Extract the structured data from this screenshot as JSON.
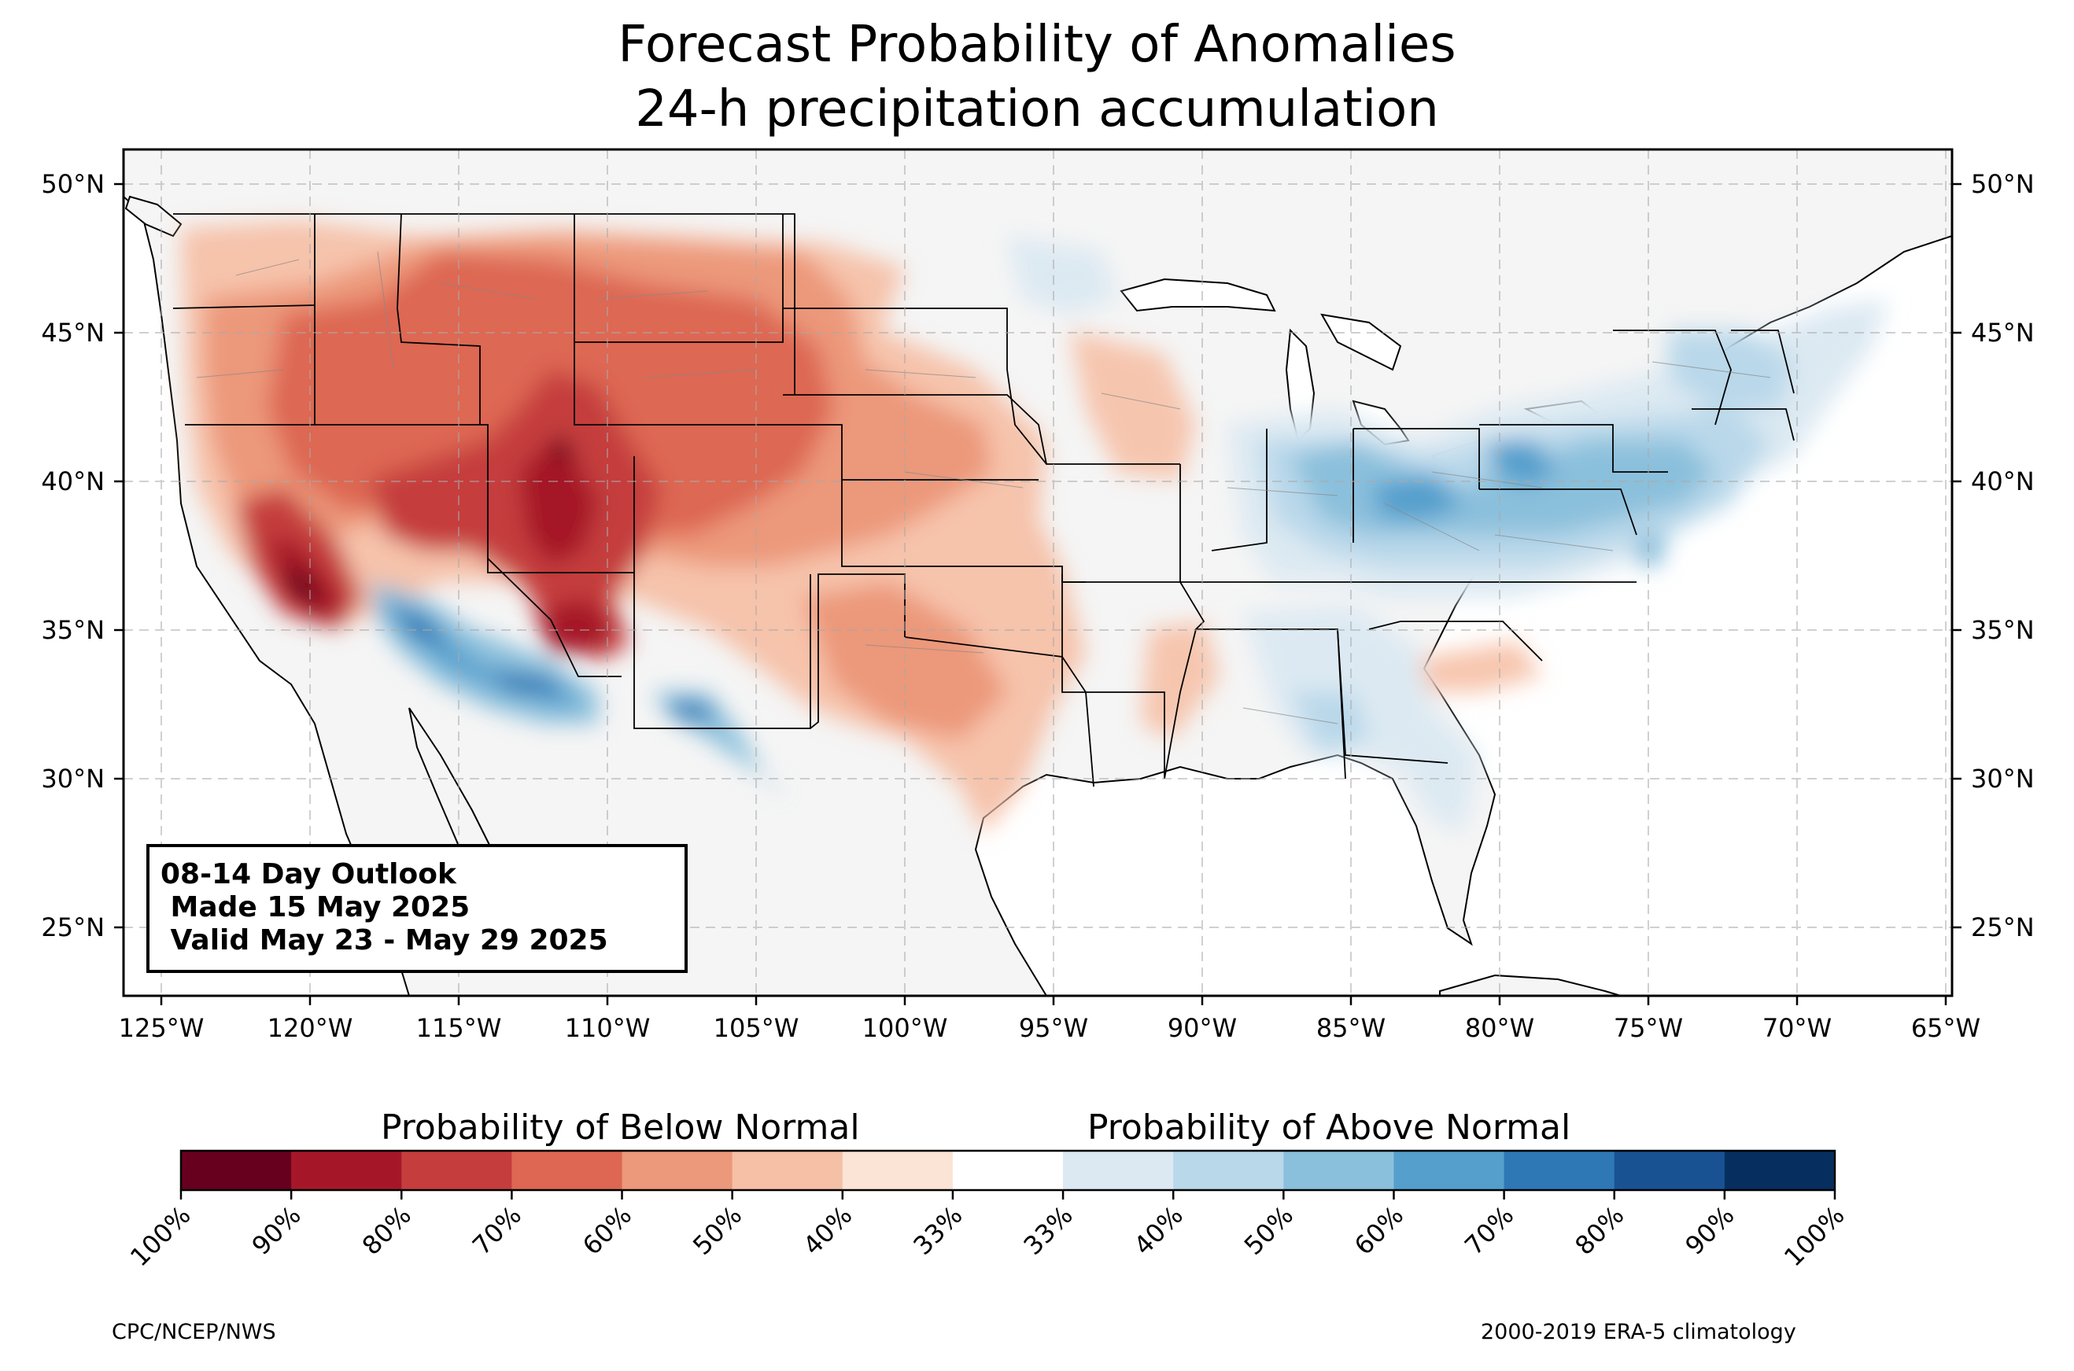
{
  "title": {
    "line1": "Forecast Probability of Anomalies",
    "line2": "24-h precipitation accumulation"
  },
  "map": {
    "lon_ticks": [
      "125°W",
      "120°W",
      "115°W",
      "110°W",
      "105°W",
      "100°W",
      "95°W",
      "90°W",
      "85°W",
      "80°W",
      "75°W",
      "70°W",
      "65°W"
    ],
    "lat_ticks": [
      "50°N",
      "45°N",
      "40°N",
      "35°N",
      "30°N",
      "25°N"
    ],
    "lon_range": [
      -126.3,
      -64.9
    ],
    "lat_range": [
      22.8,
      51.2
    ],
    "land_color": "#f5f5f5",
    "ocean_color": "#ffffff",
    "gridlines": "dashed"
  },
  "info_box": {
    "line1": "08-14 Day Outlook",
    "line2": " Made 15 May 2025",
    "line3": " Valid May 23 - May 29 2025"
  },
  "colorbar": {
    "below_label": "Probability of Below Normal",
    "above_label": "Probability of Above Normal",
    "colors": [
      "#67001f",
      "#a51728",
      "#c53d3d",
      "#dd6753",
      "#ec987a",
      "#f6c0a6",
      "#fbe4d6",
      "#ffffff",
      "#dce9f2",
      "#b9d8ea",
      "#8bc0dc",
      "#559fcd",
      "#2e78b5",
      "#195293",
      "#062f60"
    ],
    "tick_labels": [
      "100%",
      "90%",
      "80%",
      "70%",
      "60%",
      "50%",
      "40%",
      "33%",
      "33%",
      "40%",
      "50%",
      "60%",
      "70%",
      "80%",
      "90%",
      "100%"
    ]
  },
  "footer": {
    "left": "CPC/NCEP/NWS",
    "right": "2000-2019 ERA-5 climatology"
  }
}
